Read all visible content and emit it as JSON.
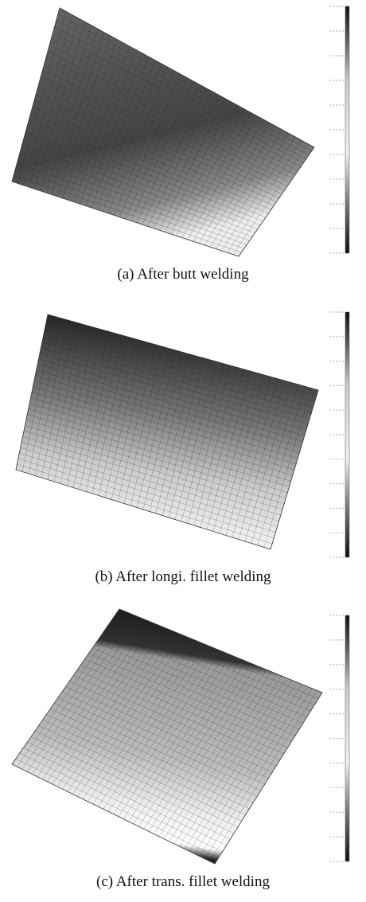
{
  "panels": [
    {
      "caption": "(a) After butt welding"
    },
    {
      "caption": "(b) After longi. fillet welding"
    },
    {
      "caption": "(c) After trans. fillet welding"
    }
  ]
}
